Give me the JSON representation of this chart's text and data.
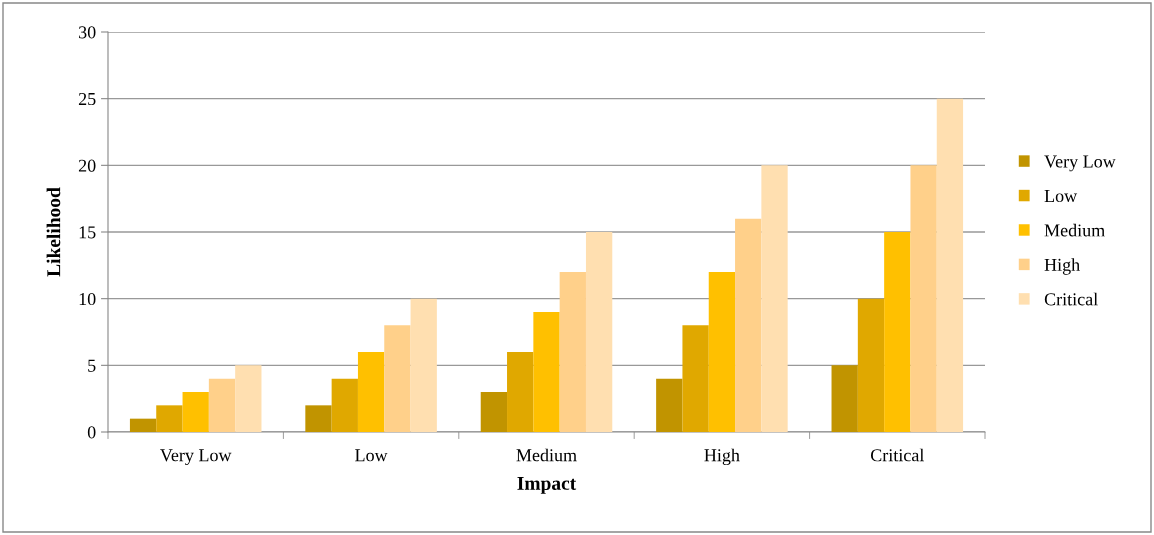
{
  "chart_data": {
    "type": "bar",
    "xlabel": "Impact",
    "ylabel": "Likelihood",
    "categories": [
      "Very Low",
      "Low",
      "Medium",
      "High",
      "Critical"
    ],
    "series": [
      {
        "name": "Very Low",
        "color": "#c19400",
        "values": [
          1,
          2,
          3,
          4,
          5
        ]
      },
      {
        "name": "Low",
        "color": "#e0a800",
        "values": [
          2,
          4,
          6,
          8,
          10
        ]
      },
      {
        "name": "Medium",
        "color": "#ffc000",
        "values": [
          3,
          6,
          9,
          12,
          15
        ]
      },
      {
        "name": "High",
        "color": "#ffd08a",
        "values": [
          4,
          8,
          12,
          16,
          20
        ]
      },
      {
        "name": "Critical",
        "color": "#ffdfb0",
        "values": [
          5,
          10,
          15,
          20,
          25
        ]
      }
    ],
    "ylim": [
      0,
      30
    ],
    "yticks": [
      0,
      5,
      10,
      15,
      20,
      25,
      30
    ],
    "grid": "y",
    "legend": "right"
  }
}
